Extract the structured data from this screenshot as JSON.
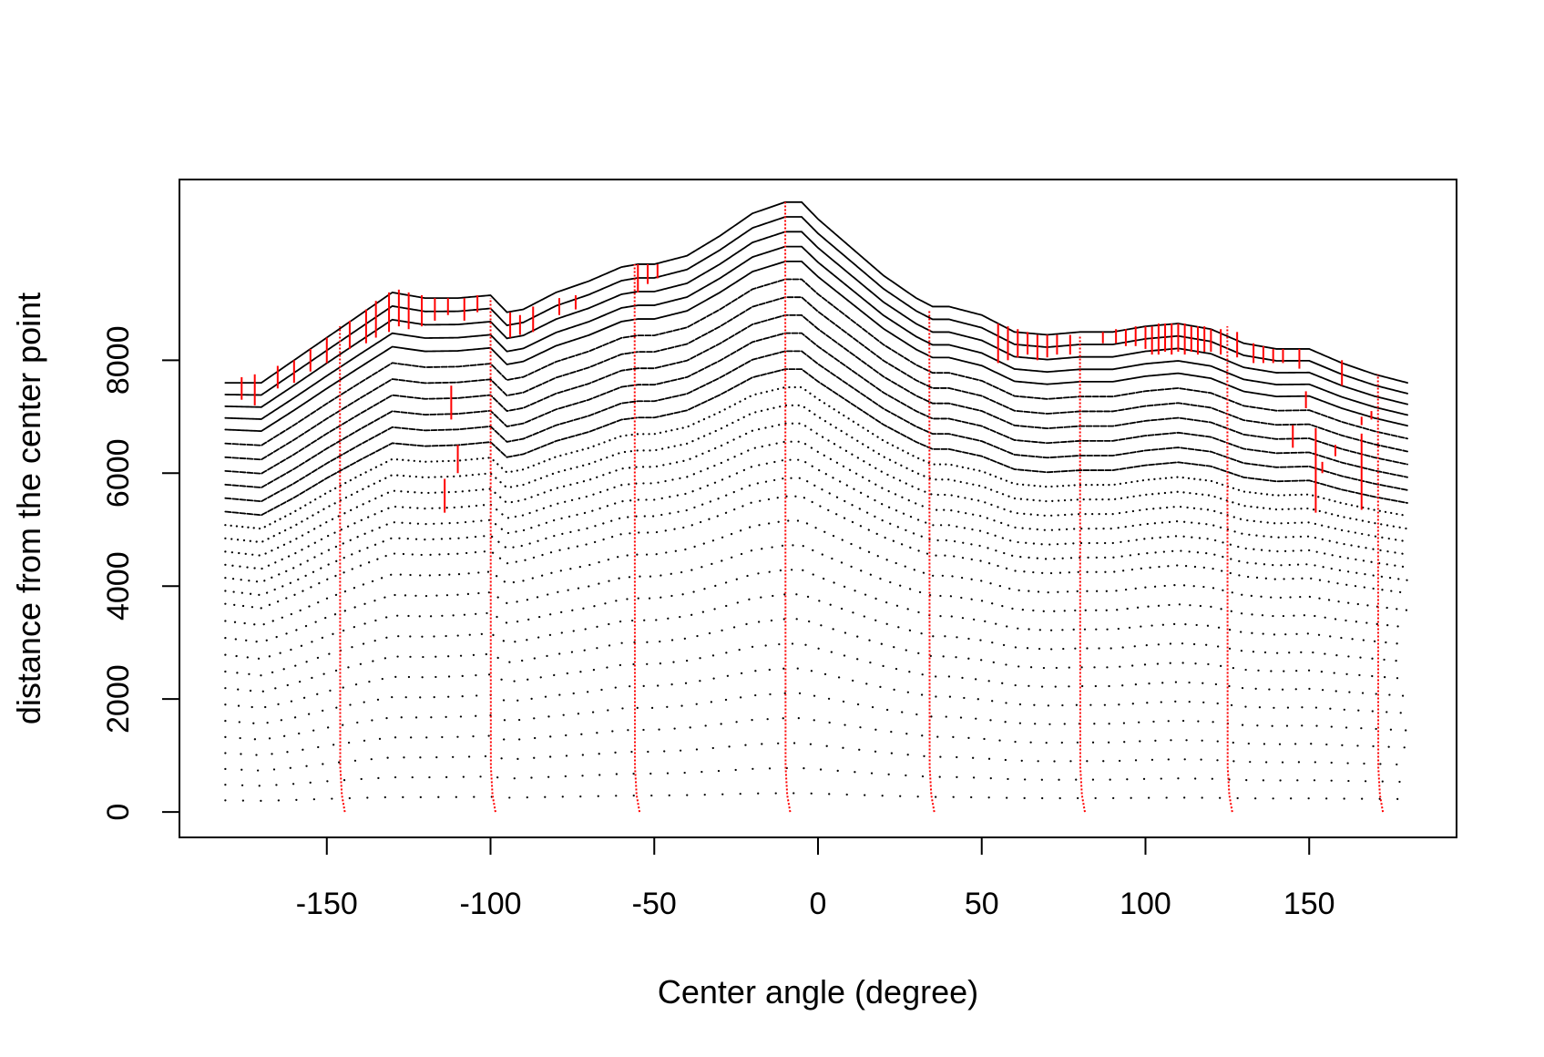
{
  "chart_data": {
    "type": "scatter",
    "title": "",
    "xlabel": "Center angle (degree)",
    "ylabel": "distance from the center point",
    "xlim": [
      -195,
      195
    ],
    "ylim": [
      -450,
      11200
    ],
    "x_ticks": [
      -150,
      -100,
      -50,
      0,
      50,
      100,
      150
    ],
    "x_tick_labels": [
      "-150",
      "-100",
      "-50",
      "0",
      "50",
      "100",
      "150"
    ],
    "y_ticks": [
      0,
      2000,
      4000,
      6000,
      8000
    ],
    "y_tick_labels": [
      "0",
      "2000",
      "4000",
      "6000",
      "8000"
    ],
    "grid": false,
    "legend": "none",
    "colors": {
      "layers": "#000000",
      "radial_lines": "#ff0000",
      "axes": "#000000"
    },
    "outer_contour": {
      "x": [
        -181,
        -170,
        -160,
        -150,
        -140,
        -130,
        -120,
        -110,
        -100,
        -95,
        -90,
        -80,
        -70,
        -60,
        -55,
        -50,
        -40,
        -30,
        -20,
        -10,
        -5,
        0,
        10,
        20,
        30,
        35,
        40,
        50,
        60,
        70,
        80,
        90,
        100,
        110,
        120,
        130,
        140,
        150,
        160,
        170,
        180
      ],
      "y": [
        7600,
        7600,
        8000,
        8400,
        8800,
        9200,
        9100,
        9100,
        9150,
        8850,
        8900,
        9200,
        9400,
        9650,
        9700,
        9700,
        9850,
        10200,
        10600,
        10800,
        10800,
        10500,
        10000,
        9500,
        9100,
        8950,
        8950,
        8800,
        8500,
        8450,
        8500,
        8500,
        8600,
        8650,
        8550,
        8300,
        8200,
        8200,
        7950,
        7750,
        7600
      ]
    },
    "inner_scale": {
      "x": [
        -181,
        -170,
        -160,
        -150,
        -140,
        -130,
        -120,
        -110,
        -100,
        -95,
        -90,
        -80,
        -70,
        -60,
        -55,
        -50,
        -40,
        -30,
        -20,
        -10,
        -5,
        0,
        10,
        20,
        30,
        35,
        40,
        50,
        60,
        70,
        80,
        90,
        100,
        110,
        120,
        130,
        140,
        150,
        160,
        170,
        180
      ],
      "y": [
        0.9,
        0.86,
        0.88,
        0.92,
        0.94,
        0.95,
        0.96,
        0.97,
        0.98,
        0.95,
        0.96,
        0.97,
        0.98,
        1.0,
        1.0,
        1.0,
        1.01,
        1.02,
        1.03,
        1.03,
        1.03,
        1.03,
        1.02,
        1.01,
        1.0,
        0.99,
        0.99,
        0.98,
        0.97,
        0.96,
        0.96,
        0.96,
        0.97,
        0.98,
        0.98,
        0.97,
        0.97,
        0.98,
        0.99,
        1.0,
        1.0
      ]
    },
    "layers": {
      "count": 30,
      "levels": [
        0.03,
        0.07,
        0.11,
        0.15,
        0.19,
        0.23,
        0.27,
        0.31,
        0.35,
        0.39,
        0.43,
        0.47,
        0.51,
        0.54,
        0.57,
        0.6,
        0.63,
        0.66,
        0.69,
        0.72,
        0.75,
        0.78,
        0.81,
        0.84,
        0.87,
        0.9,
        0.925,
        0.95,
        0.975,
        1.0
      ]
    },
    "radial_lines": {
      "x": [
        -146,
        -100,
        -56,
        -10,
        34,
        80,
        125,
        171
      ],
      "y_top": [
        8600,
        9100,
        9700,
        10800,
        8900,
        8450,
        8600,
        7750
      ]
    },
    "red_segments": [
      {
        "x": -176,
        "y1": 7700,
        "y2": 7300
      },
      {
        "x": -172,
        "y1": 7750,
        "y2": 7200
      },
      {
        "x": -165,
        "y1": 7900,
        "y2": 7500
      },
      {
        "x": -160,
        "y1": 8000,
        "y2": 7600
      },
      {
        "x": -155,
        "y1": 8200,
        "y2": 7800
      },
      {
        "x": -150,
        "y1": 8400,
        "y2": 7950
      },
      {
        "x": -143,
        "y1": 8700,
        "y2": 8200
      },
      {
        "x": -138,
        "y1": 8900,
        "y2": 8300
      },
      {
        "x": -135,
        "y1": 9050,
        "y2": 8400
      },
      {
        "x": -131,
        "y1": 9200,
        "y2": 8500
      },
      {
        "x": -128,
        "y1": 9250,
        "y2": 8600
      },
      {
        "x": -125,
        "y1": 9200,
        "y2": 8550
      },
      {
        "x": -121,
        "y1": 9150,
        "y2": 8600
      },
      {
        "x": -117,
        "y1": 9100,
        "y2": 8700
      },
      {
        "x": -113,
        "y1": 9100,
        "y2": 8800
      },
      {
        "x": -108,
        "y1": 9100,
        "y2": 8700
      },
      {
        "x": -104,
        "y1": 9150,
        "y2": 8850
      },
      {
        "x": -112,
        "y1": 7550,
        "y2": 6950
      },
      {
        "x": -110,
        "y1": 6500,
        "y2": 6000
      },
      {
        "x": -114,
        "y1": 5900,
        "y2": 5300
      },
      {
        "x": -94,
        "y1": 8850,
        "y2": 8400
      },
      {
        "x": -91,
        "y1": 8800,
        "y2": 8450
      },
      {
        "x": -87,
        "y1": 8950,
        "y2": 8500
      },
      {
        "x": -79,
        "y1": 9100,
        "y2": 8800
      },
      {
        "x": -74,
        "y1": 9150,
        "y2": 8900
      },
      {
        "x": -55,
        "y1": 9700,
        "y2": 9200
      },
      {
        "x": -52,
        "y1": 9700,
        "y2": 9350
      },
      {
        "x": -49,
        "y1": 9700,
        "y2": 9450
      },
      {
        "x": 55,
        "y1": 8650,
        "y2": 7950
      },
      {
        "x": 58,
        "y1": 8600,
        "y2": 8000
      },
      {
        "x": 61,
        "y1": 8550,
        "y2": 8050
      },
      {
        "x": 64,
        "y1": 8500,
        "y2": 8100
      },
      {
        "x": 67,
        "y1": 8450,
        "y2": 8000
      },
      {
        "x": 70,
        "y1": 8450,
        "y2": 8050
      },
      {
        "x": 73,
        "y1": 8450,
        "y2": 8100
      },
      {
        "x": 77,
        "y1": 8450,
        "y2": 8100
      },
      {
        "x": 87,
        "y1": 8500,
        "y2": 8300
      },
      {
        "x": 91,
        "y1": 8550,
        "y2": 8300
      },
      {
        "x": 94,
        "y1": 8550,
        "y2": 8250
      },
      {
        "x": 97,
        "y1": 8600,
        "y2": 8250
      },
      {
        "x": 100,
        "y1": 8600,
        "y2": 8200
      },
      {
        "x": 102,
        "y1": 8600,
        "y2": 8100
      },
      {
        "x": 104,
        "y1": 8650,
        "y2": 8100
      },
      {
        "x": 106,
        "y1": 8650,
        "y2": 8150
      },
      {
        "x": 108,
        "y1": 8650,
        "y2": 8100
      },
      {
        "x": 110,
        "y1": 8650,
        "y2": 8150
      },
      {
        "x": 112,
        "y1": 8650,
        "y2": 8100
      },
      {
        "x": 114,
        "y1": 8600,
        "y2": 8150
      },
      {
        "x": 116,
        "y1": 8600,
        "y2": 8100
      },
      {
        "x": 118,
        "y1": 8600,
        "y2": 8150
      },
      {
        "x": 120,
        "y1": 8550,
        "y2": 8150
      },
      {
        "x": 123,
        "y1": 8550,
        "y2": 8100
      },
      {
        "x": 128,
        "y1": 8500,
        "y2": 8050
      },
      {
        "x": 133,
        "y1": 8300,
        "y2": 7950
      },
      {
        "x": 136,
        "y1": 8250,
        "y2": 7950
      },
      {
        "x": 139,
        "y1": 8200,
        "y2": 7950
      },
      {
        "x": 142,
        "y1": 8200,
        "y2": 7950
      },
      {
        "x": 147,
        "y1": 8200,
        "y2": 7850
      },
      {
        "x": 149,
        "y1": 7450,
        "y2": 7150
      },
      {
        "x": 145,
        "y1": 6850,
        "y2": 6450
      },
      {
        "x": 152,
        "y1": 6800,
        "y2": 5300
      },
      {
        "x": 154,
        "y1": 6200,
        "y2": 6000
      },
      {
        "x": 158,
        "y1": 6500,
        "y2": 6300
      },
      {
        "x": 160,
        "y1": 8000,
        "y2": 7550
      },
      {
        "x": 166,
        "y1": 7000,
        "y2": 6850
      },
      {
        "x": 166,
        "y1": 6700,
        "y2": 5350
      },
      {
        "x": 169,
        "y1": 7100,
        "y2": 6950
      }
    ]
  }
}
